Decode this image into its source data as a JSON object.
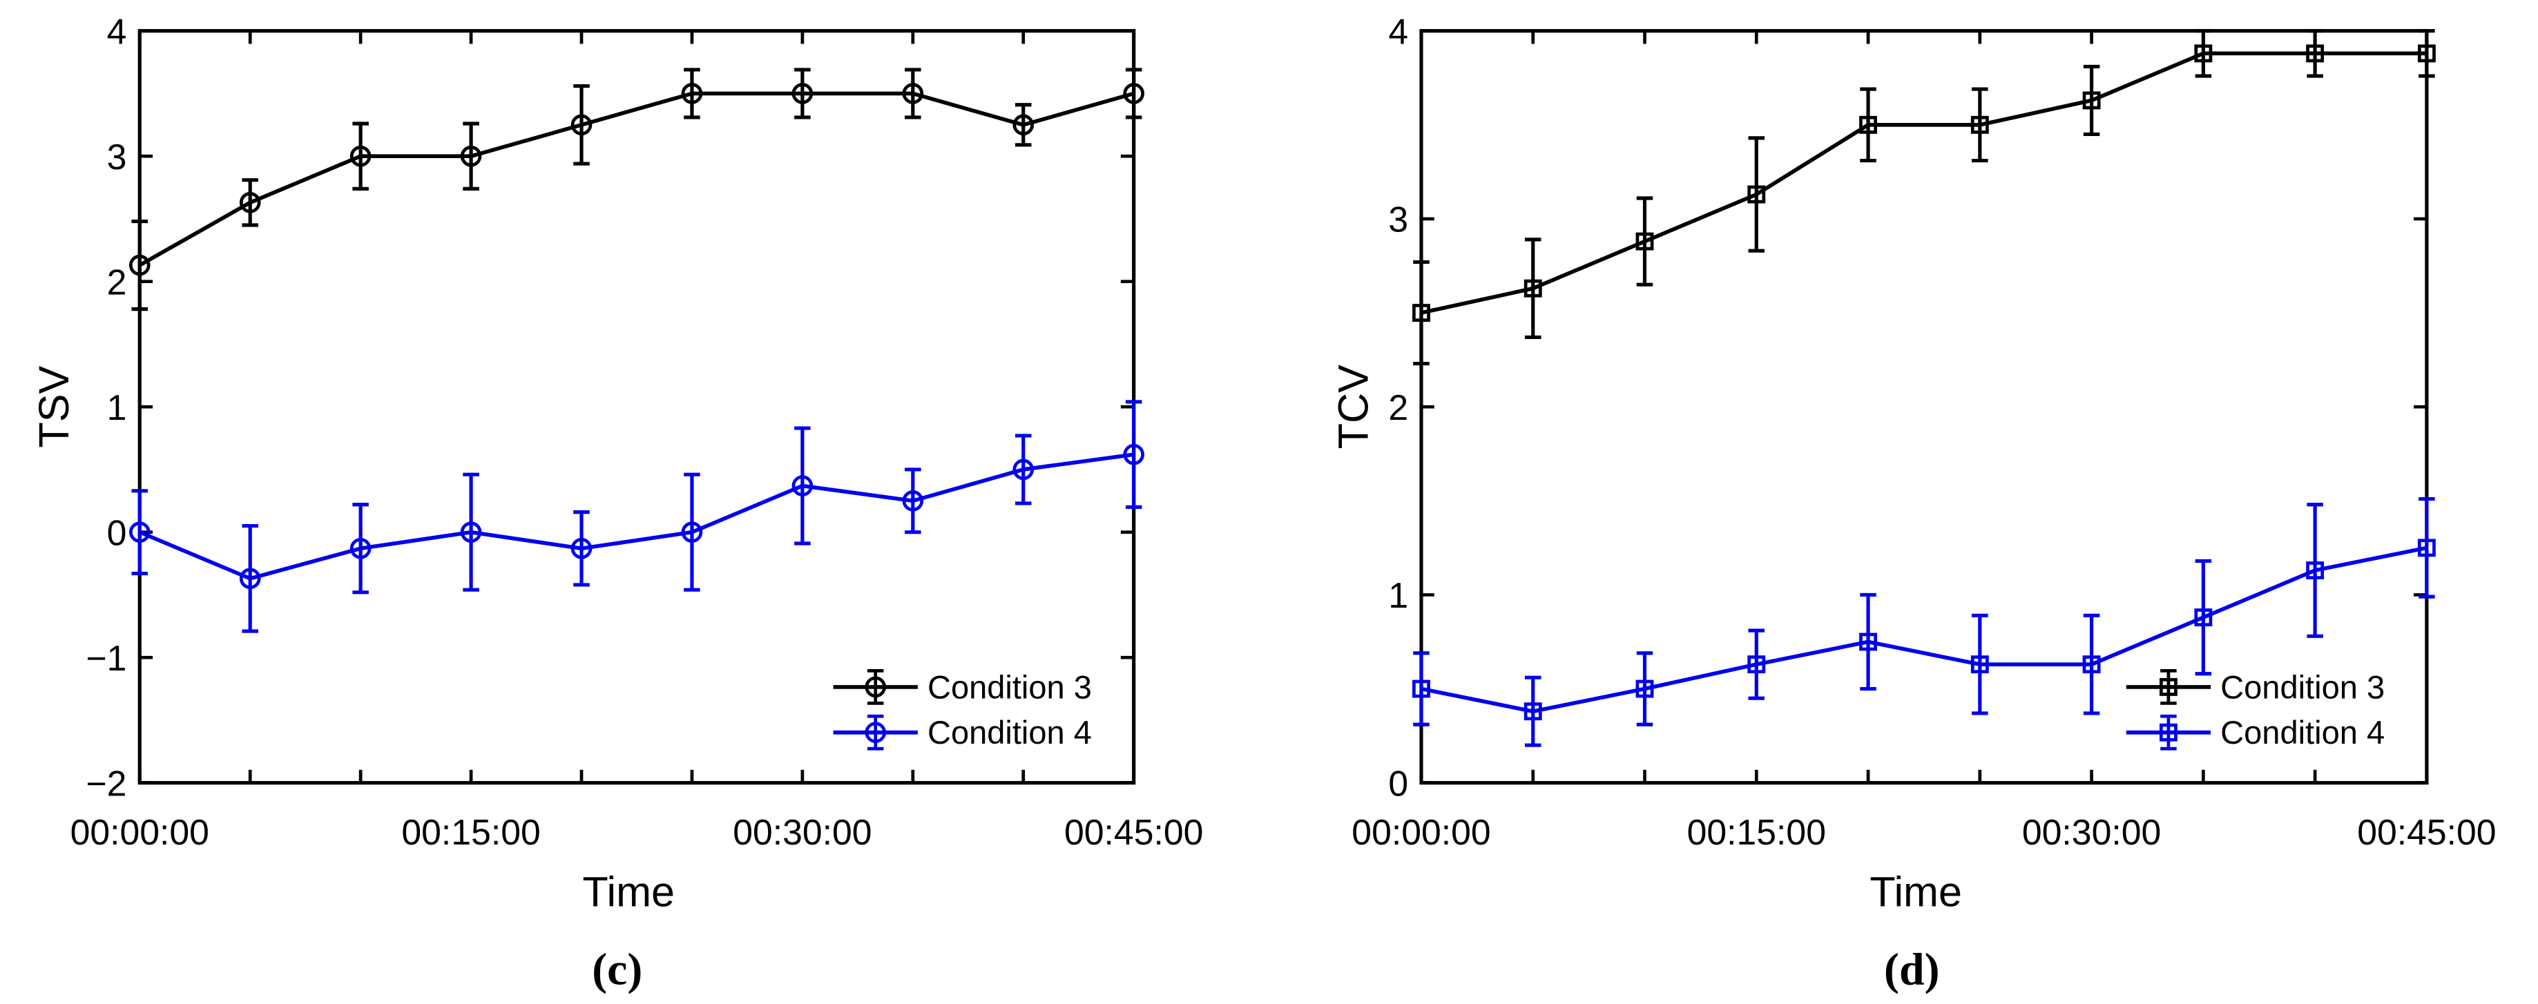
{
  "chart_data": [
    {
      "type": "line",
      "panel_label": "(c)",
      "xlabel": "Time",
      "ylabel": "TSV",
      "xticks": [
        "00:00:00",
        "00:15:00",
        "00:30:00",
        "00:45:00"
      ],
      "xlim_minutes": [
        0,
        45
      ],
      "ylim": [
        -2,
        4
      ],
      "yticks": [
        -2,
        -1,
        0,
        1,
        2,
        3,
        4
      ],
      "ytick_labels": [
        "−2",
        "−1",
        "0",
        "1",
        "2",
        "3",
        "4"
      ],
      "grid": false,
      "legend_position": "bottom-right",
      "x_minutes": [
        0,
        5,
        10,
        15,
        20,
        25,
        30,
        35,
        40,
        45
      ],
      "series": [
        {
          "name": "Condition 3",
          "color": "#000000",
          "marker": "circle",
          "values": [
            2.13,
            2.63,
            3.0,
            3.0,
            3.25,
            3.5,
            3.5,
            3.5,
            3.25,
            3.5
          ],
          "errors": [
            0.35,
            0.18,
            0.26,
            0.26,
            0.31,
            0.19,
            0.19,
            0.19,
            0.16,
            0.19
          ]
        },
        {
          "name": "Condition 4",
          "color": "#0000ee",
          "marker": "circle",
          "values": [
            0.0,
            -0.37,
            -0.13,
            0.0,
            -0.13,
            0.0,
            0.37,
            0.25,
            0.5,
            0.62
          ],
          "errors": [
            0.33,
            0.42,
            0.35,
            0.46,
            0.29,
            0.46,
            0.46,
            0.25,
            0.27,
            0.42
          ]
        }
      ]
    },
    {
      "type": "line",
      "panel_label": "(d)",
      "xlabel": "Time",
      "ylabel": "TCV",
      "xticks": [
        "00:00:00",
        "00:15:00",
        "00:30:00",
        "00:45:00"
      ],
      "xlim_minutes": [
        0,
        45
      ],
      "ylim": [
        0,
        4
      ],
      "yticks": [
        0,
        1,
        2,
        3,
        4
      ],
      "ytick_labels": [
        "0",
        "1",
        "2",
        "3",
        "4"
      ],
      "grid": false,
      "legend_position": "bottom-right",
      "x_minutes": [
        0,
        5,
        10,
        15,
        20,
        25,
        30,
        35,
        40,
        45
      ],
      "series": [
        {
          "name": "Condition 3",
          "color": "#000000",
          "marker": "square",
          "values": [
            2.5,
            2.63,
            2.88,
            3.13,
            3.5,
            3.5,
            3.63,
            3.88,
            3.88,
            3.88
          ],
          "errors": [
            0.27,
            0.26,
            0.23,
            0.3,
            0.19,
            0.19,
            0.18,
            0.12,
            0.12,
            0.12
          ]
        },
        {
          "name": "Condition 4",
          "color": "#0000ee",
          "marker": "square",
          "values": [
            0.5,
            0.38,
            0.5,
            0.63,
            0.75,
            0.63,
            0.63,
            0.88,
            1.13,
            1.25
          ],
          "errors": [
            0.19,
            0.18,
            0.19,
            0.18,
            0.25,
            0.26,
            0.26,
            0.3,
            0.35,
            0.26
          ]
        }
      ]
    }
  ]
}
